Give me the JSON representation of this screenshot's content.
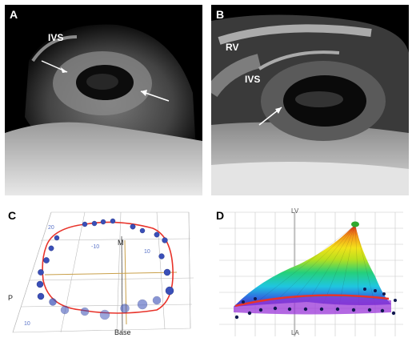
{
  "figure": {
    "panels": {
      "a": {
        "label": "A",
        "annotations": {
          "ivs": "IVS"
        }
      },
      "b": {
        "label": "B",
        "annotations": {
          "rv": "RV",
          "ivs": "IVS"
        }
      },
      "c": {
        "label": "C",
        "axis_labels": {
          "m": "M",
          "base": "Base",
          "p": "P"
        },
        "tick_labels": {
          "left": "-10",
          "right": "10",
          "top_left": "20",
          "bottom_left": "10"
        }
      },
      "d": {
        "label": "D",
        "axis_labels": {
          "top": "LV",
          "bottom": "LA"
        }
      }
    },
    "colors": {
      "contour_red": "#e8332a",
      "dots_blue": "#2b3fa8",
      "apex_green": "#2ea82e"
    }
  }
}
